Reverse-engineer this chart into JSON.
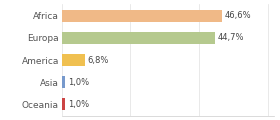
{
  "categories": [
    "Africa",
    "Europa",
    "America",
    "Asia",
    "Oceania"
  ],
  "values": [
    46.6,
    44.7,
    6.8,
    1.0,
    1.0
  ],
  "labels": [
    "46,6%",
    "44,7%",
    "6,8%",
    "1,0%",
    "1,0%"
  ],
  "bar_colors": [
    "#f0b987",
    "#b5c98e",
    "#f0c050",
    "#7799cc",
    "#cc4444"
  ],
  "background_color": "#ffffff",
  "xlim": [
    0,
    62
  ]
}
